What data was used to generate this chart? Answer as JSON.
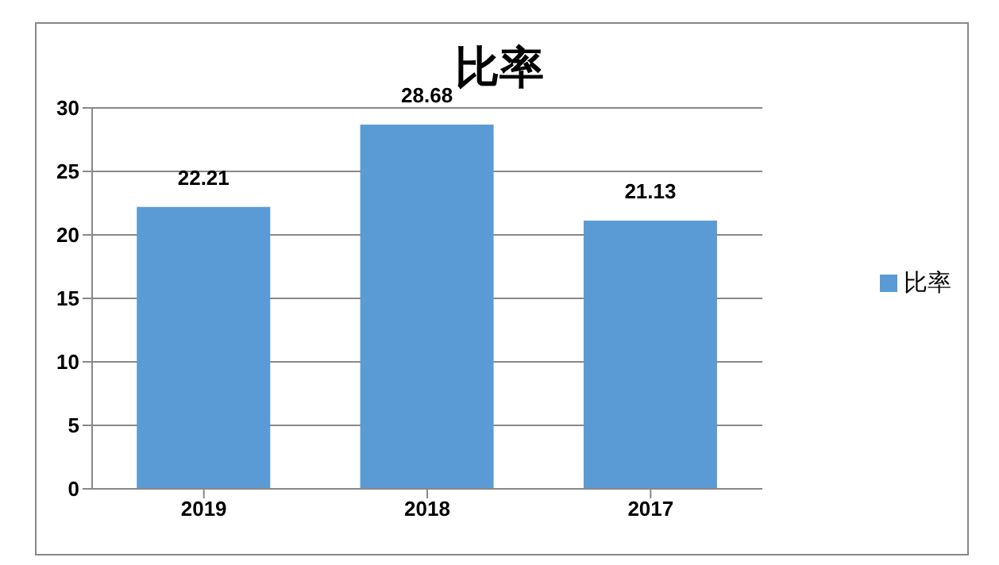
{
  "chart_data": {
    "type": "bar",
    "title": "比率",
    "categories": [
      "2019",
      "2018",
      "2017"
    ],
    "series": [
      {
        "name": "比率",
        "color": "#5b9bd5",
        "values": [
          22.21,
          28.68,
          21.13
        ]
      }
    ],
    "ylim": [
      0,
      30
    ],
    "yticks": [
      0,
      5,
      10,
      15,
      20,
      25,
      30
    ],
    "grid": "y",
    "legend": "right",
    "data_labels": true
  }
}
